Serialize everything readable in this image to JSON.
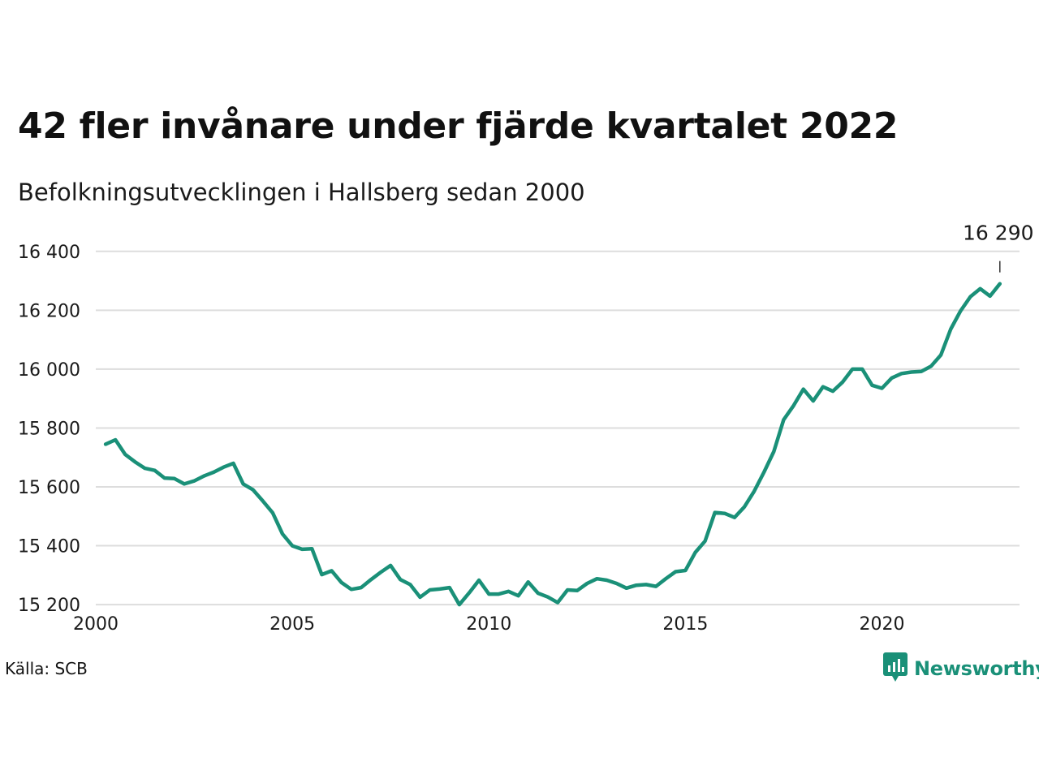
{
  "title": "42 fler invånare under fjärde kvartalet 2022",
  "subtitle": "Befolkningsutvecklingen i Hallsberg sedan 2000",
  "source": "Källa: SCB",
  "brand": {
    "name": "Newsworthy",
    "icon": "newsworthy-logo-icon",
    "color": "#1a9078"
  },
  "chart_data": {
    "type": "line",
    "title": "42 fler invånare under fjärde kvartalet 2022",
    "subtitle": "Befolkningsutvecklingen i Hallsberg sedan 2000",
    "xlabel": "",
    "ylabel": "",
    "x_start": 2000.25,
    "x_step": 0.25,
    "xlim": [
      2000,
      2023.5
    ],
    "ylim": [
      15170,
      16460
    ],
    "x_ticks": [
      2000,
      2005,
      2010,
      2015,
      2020
    ],
    "x_tick_labels": [
      "2000",
      "2005",
      "2010",
      "2015",
      "2020"
    ],
    "y_ticks": [
      15200,
      15400,
      15600,
      15800,
      16000,
      16200,
      16400
    ],
    "y_tick_labels": [
      "15 200",
      "15 400",
      "15 600",
      "15 800",
      "16 000",
      "16 200",
      "16 400"
    ],
    "grid": true,
    "series": [
      {
        "color": "#1a9078",
        "values": [
          15745,
          15760,
          15710,
          15685,
          15663,
          15656,
          15630,
          15628,
          15610,
          15620,
          15637,
          15650,
          15667,
          15680,
          15610,
          15590,
          15552,
          15512,
          15440,
          15400,
          15388,
          15390,
          15302,
          15315,
          15275,
          15252,
          15258,
          15285,
          15310,
          15333,
          15285,
          15268,
          15225,
          15250,
          15253,
          15258,
          15200,
          15240,
          15283,
          15236,
          15236,
          15245,
          15230,
          15277,
          15239,
          15226,
          15207,
          15250,
          15248,
          15272,
          15288,
          15283,
          15272,
          15256,
          15266,
          15268,
          15262,
          15288,
          15312,
          15316,
          15377,
          15416,
          15513,
          15510,
          15496,
          15532,
          15585,
          15650,
          15720,
          15828,
          15876,
          15932,
          15892,
          15940,
          15925,
          15956,
          16000,
          16000,
          15945,
          15935,
          15970,
          15985,
          15990,
          15992,
          16010,
          16048,
          16136,
          16198,
          16246,
          16273,
          16248,
          16290
        ]
      }
    ],
    "annotations": [
      {
        "text": "16 290",
        "value": 16290
      }
    ]
  }
}
